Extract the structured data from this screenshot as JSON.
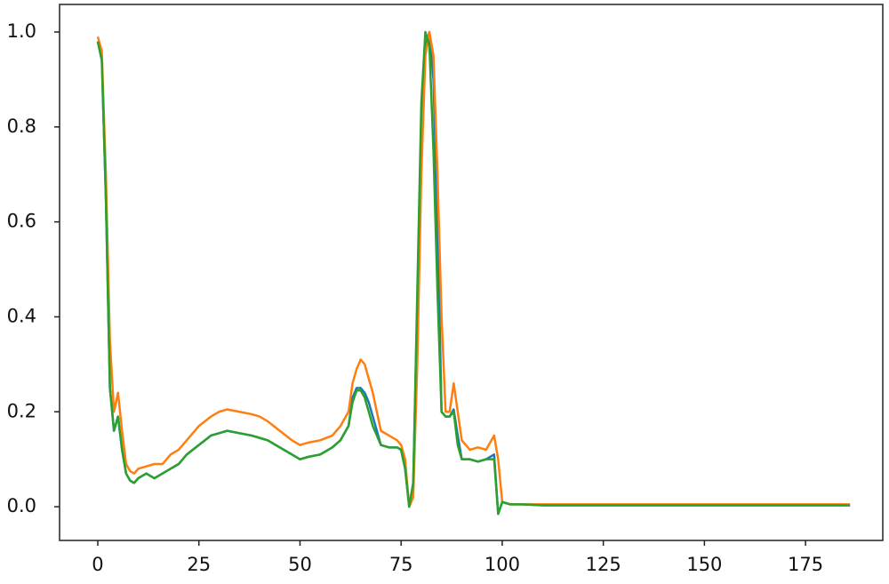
{
  "chart_data": {
    "type": "line",
    "x": [
      0,
      1,
      2,
      3,
      4,
      5,
      6,
      7,
      8,
      9,
      10,
      12,
      14,
      16,
      18,
      20,
      22,
      25,
      28,
      30,
      32,
      35,
      38,
      40,
      42,
      45,
      48,
      50,
      52,
      55,
      58,
      60,
      62,
      63,
      64,
      65,
      66,
      67,
      68,
      70,
      72,
      74,
      75,
      76,
      77,
      78,
      79,
      80,
      81,
      82,
      83,
      84,
      85,
      86,
      87,
      88,
      89,
      90,
      92,
      94,
      96,
      98,
      99,
      100,
      102,
      105,
      110,
      120,
      130,
      140,
      150,
      160,
      170,
      180,
      186
    ],
    "series": [
      {
        "color": "#1f77b4",
        "values": [
          0.98,
          0.94,
          0.65,
          0.25,
          0.16,
          0.19,
          0.12,
          0.07,
          0.055,
          0.05,
          0.06,
          0.07,
          0.06,
          0.07,
          0.08,
          0.09,
          0.11,
          0.13,
          0.15,
          0.155,
          0.16,
          0.155,
          0.15,
          0.145,
          0.14,
          0.125,
          0.11,
          0.1,
          0.105,
          0.11,
          0.125,
          0.14,
          0.17,
          0.23,
          0.25,
          0.25,
          0.24,
          0.22,
          0.19,
          0.13,
          0.125,
          0.125,
          0.12,
          0.08,
          0.0,
          0.05,
          0.42,
          0.82,
          0.97,
          1.0,
          0.9,
          0.6,
          0.2,
          0.19,
          0.19,
          0.205,
          0.15,
          0.1,
          0.1,
          0.095,
          0.1,
          0.11,
          -0.015,
          0.01,
          0.005,
          0.005,
          0.003,
          0.003,
          0.003,
          0.003,
          0.003,
          0.003,
          0.003,
          0.003,
          0.003
        ]
      },
      {
        "color": "#ff7f0e",
        "values": [
          0.99,
          0.96,
          0.7,
          0.35,
          0.2,
          0.24,
          0.16,
          0.09,
          0.075,
          0.07,
          0.08,
          0.085,
          0.09,
          0.09,
          0.11,
          0.12,
          0.14,
          0.17,
          0.19,
          0.2,
          0.205,
          0.2,
          0.195,
          0.19,
          0.18,
          0.16,
          0.14,
          0.13,
          0.135,
          0.14,
          0.15,
          0.17,
          0.2,
          0.26,
          0.29,
          0.31,
          0.3,
          0.27,
          0.24,
          0.16,
          0.15,
          0.14,
          0.13,
          0.1,
          0.0,
          0.02,
          0.3,
          0.7,
          0.95,
          1.0,
          0.95,
          0.7,
          0.4,
          0.2,
          0.2,
          0.26,
          0.2,
          0.14,
          0.12,
          0.125,
          0.12,
          0.15,
          0.1,
          0.01,
          0.005,
          0.005,
          0.005,
          0.005,
          0.005,
          0.005,
          0.005,
          0.005,
          0.005,
          0.005,
          0.005
        ]
      },
      {
        "color": "#2ca02c",
        "values": [
          0.98,
          0.94,
          0.65,
          0.25,
          0.16,
          0.19,
          0.12,
          0.07,
          0.055,
          0.05,
          0.06,
          0.07,
          0.06,
          0.07,
          0.08,
          0.09,
          0.11,
          0.13,
          0.15,
          0.155,
          0.16,
          0.155,
          0.15,
          0.145,
          0.14,
          0.125,
          0.11,
          0.1,
          0.105,
          0.11,
          0.125,
          0.14,
          0.17,
          0.22,
          0.245,
          0.245,
          0.23,
          0.2,
          0.17,
          0.13,
          0.125,
          0.125,
          0.12,
          0.08,
          0.0,
          0.05,
          0.45,
          0.85,
          1.0,
          0.97,
          0.75,
          0.45,
          0.2,
          0.19,
          0.19,
          0.2,
          0.13,
          0.1,
          0.1,
          0.095,
          0.1,
          0.1,
          -0.015,
          0.01,
          0.005,
          0.005,
          0.003,
          0.003,
          0.003,
          0.003,
          0.003,
          0.003,
          0.003,
          0.003,
          0.003
        ]
      }
    ],
    "xlim": [
      -9.45,
      194.1
    ],
    "ylim": [
      -0.071,
      1.058
    ],
    "xticks": [
      0,
      25,
      50,
      75,
      100,
      125,
      150,
      175
    ],
    "yticks": [
      {
        "value": 0,
        "label": "0.0"
      },
      0.2,
      0.4,
      0.6,
      0.8,
      {
        "value": 1,
        "label": "1.0"
      }
    ]
  }
}
